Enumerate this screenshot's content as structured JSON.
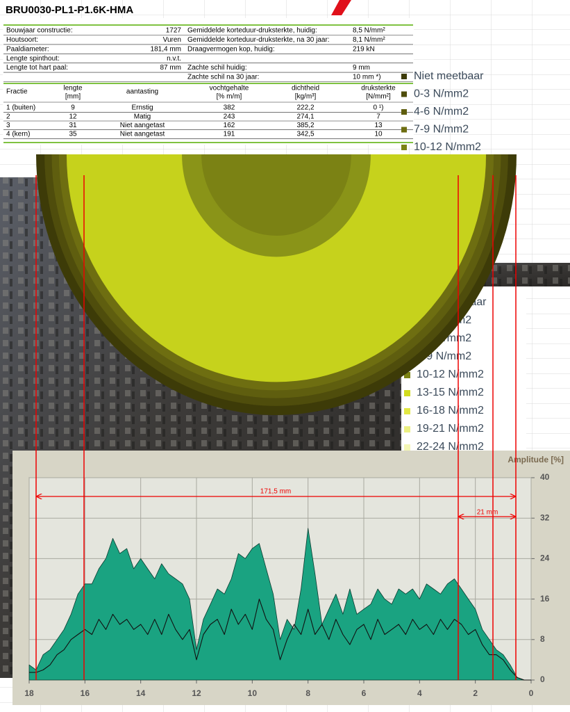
{
  "header": {
    "title": "BRU0030-PL1-P1.6K-HMA"
  },
  "info": {
    "rows": [
      {
        "label": "Bouwjaar constructie:",
        "value": "1727",
        "label2": "Gemiddelde korteduur-druksterkte, huidig:",
        "value2": "8,5 N/mm²"
      },
      {
        "label": "Houtsoort:",
        "value": "Vuren",
        "label2": "Gemiddelde korteduur-druksterkte, na 30 jaar:",
        "value2": "8,1 N/mm²"
      },
      {
        "label": "Paaldiameter:",
        "value": "181,4 mm",
        "label2": "Draagvermogen kop, huidig:",
        "value2": "219 kN"
      },
      {
        "label": "Lengte spinthout:",
        "value": "n.v.t."
      },
      {
        "label": "Lengte tot hart paal:",
        "value": "87 mm",
        "label2": "Zachte schil huidig:",
        "value2": "9 mm"
      },
      {
        "label2": "Zachte schil na 30 jaar:",
        "value2": "10 mm *)"
      }
    ]
  },
  "fractions": {
    "header": [
      [
        "Fractie"
      ],
      [
        "lengte",
        "[mm]"
      ],
      [
        "aantasting"
      ],
      [
        "vochtgehalte",
        "[% m/m]"
      ],
      [
        "dichtheid",
        "[kg/m³]"
      ],
      [
        "druksterkte",
        "[N/mm²]"
      ]
    ],
    "rows": [
      [
        "1 (buiten)",
        "9",
        "Ernstig",
        "382",
        "222,2",
        "0 ¹)"
      ],
      [
        "2",
        "12",
        "Matig",
        "243",
        "274,1",
        "7"
      ],
      [
        "3",
        "31",
        "Niet aangetast",
        "162",
        "385,2",
        "13"
      ],
      [
        "4 (kern)",
        "35",
        "Niet aangetast",
        "191",
        "342,5",
        "10"
      ]
    ]
  },
  "legends": [
    {
      "items": [
        {
          "label": "Niet meetbaar",
          "color": "#3d3b08"
        },
        {
          "label": "0-3 N/mm2",
          "color": "#4f4d0c"
        },
        {
          "label": "4-6 N/mm2",
          "color": "#5f5e0f"
        },
        {
          "label": "7-9 N/mm2",
          "color": "#6e6e11"
        },
        {
          "label": "10-12 N/mm2",
          "color": "#7b8214"
        }
      ]
    },
    {
      "items": [
        {
          "label": "Niet meetbaar",
          "color": "#3d3b08"
        },
        {
          "label": "0-3 N/mm2",
          "color": "#4f4d0c"
        },
        {
          "label": "4-6 N/mm2",
          "color": "#5f5e0f"
        },
        {
          "label": "7-9 N/mm2",
          "color": "#6e6e11"
        },
        {
          "label": "10-12 N/mm2",
          "color": "#7b8214"
        },
        {
          "label": "13-15 N/mm2",
          "color": "#d2dc1e"
        },
        {
          "label": "16-18 N/mm2",
          "color": "#e2e844"
        },
        {
          "label": "19-21 N/mm2",
          "color": "#ecf082"
        },
        {
          "label": "22-24 N/mm2",
          "color": "#f4f6b4"
        }
      ]
    }
  ],
  "chart_data": {
    "type": "area",
    "y_label": "Amplitude [%]",
    "x": [
      18,
      17.75,
      17.5,
      17.25,
      17,
      16.75,
      16.5,
      16.25,
      16,
      15.75,
      15.5,
      15.25,
      15,
      14.75,
      14.5,
      14.25,
      14,
      13.75,
      13.5,
      13.25,
      13,
      12.75,
      12.5,
      12.25,
      12,
      11.75,
      11.5,
      11.25,
      11,
      10.75,
      10.5,
      10.25,
      10,
      9.75,
      9.5,
      9.25,
      9,
      8.75,
      8.5,
      8.25,
      8,
      7.75,
      7.5,
      7.25,
      7,
      6.75,
      6.5,
      6.25,
      6,
      5.75,
      5.5,
      5.25,
      5,
      4.75,
      4.5,
      4.25,
      4,
      3.75,
      3.5,
      3.25,
      3,
      2.75,
      2.5,
      2.25,
      2,
      1.75,
      1.5,
      1.25,
      1,
      0.75,
      0.5,
      0.25,
      0
    ],
    "series": [
      {
        "color": "#1aa381",
        "fill": true,
        "values": [
          3,
          2,
          5,
          6,
          8,
          10,
          13,
          17,
          19,
          19,
          22,
          24,
          28,
          25,
          26,
          22,
          24,
          22,
          20,
          23,
          21,
          20,
          19,
          16,
          6,
          12,
          15,
          18,
          17,
          20,
          25,
          24,
          26,
          27,
          22,
          17,
          8,
          12,
          10,
          18,
          30,
          21,
          11,
          14,
          17,
          13,
          18,
          13,
          14,
          15,
          18,
          16,
          15,
          18,
          17,
          18,
          16,
          19,
          18,
          17,
          19,
          20,
          18,
          16,
          14,
          10,
          8,
          6,
          5,
          3,
          0.5,
          0,
          0
        ]
      },
      {
        "color": "#111111",
        "fill": false,
        "values": [
          1.5,
          1.5,
          2,
          3,
          5,
          6,
          8,
          9,
          10,
          9,
          12,
          10,
          13,
          11,
          12,
          10,
          11,
          9,
          12,
          9,
          13,
          10,
          8,
          10,
          4,
          9,
          11,
          12,
          9,
          14,
          11,
          13,
          10,
          16,
          12,
          10,
          4,
          8,
          11,
          9,
          14,
          9,
          11,
          8,
          12,
          9,
          7,
          10,
          11,
          8,
          12,
          9,
          10,
          11,
          9,
          12,
          10,
          11,
          9,
          12,
          10,
          12,
          11,
          9,
          10,
          7,
          5,
          5,
          4,
          2,
          0.5,
          0,
          0
        ]
      }
    ],
    "xlim": [
      18,
      0
    ],
    "ylim": [
      0,
      40
    ],
    "xticks": [
      18,
      16,
      14,
      12,
      10,
      8,
      6,
      4,
      2,
      0
    ],
    "yticks": [
      0,
      8,
      16,
      24,
      32,
      40
    ],
    "grid": true,
    "annotations": [
      "171,5 mm",
      "21 mm"
    ]
  }
}
